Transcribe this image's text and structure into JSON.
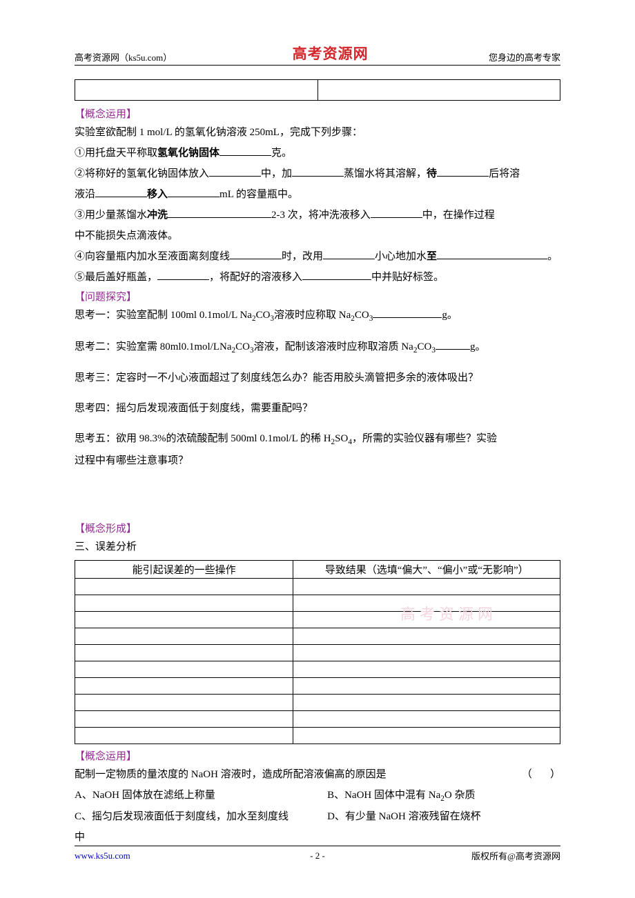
{
  "header": {
    "left": "高考资源网（ks5u.com）",
    "center": "高考资源网",
    "right": "您身边的高考专家"
  },
  "sections": {
    "apply1": "【概念运用】",
    "inquiry": "【问题探究】",
    "form": "【概念形成】",
    "apply2": "【概念运用】"
  },
  "intro": "实验室欲配制 1 mol/L 的氢氧化钠溶液 250mL，完成下列步骤：",
  "step1_a": "①用托盘天平称取",
  "step1_b": "氢氧化钠固体",
  "step1_c": "克。",
  "step2_a": "②将称好的氢氧化钠固体放入",
  "step2_b": "中，加",
  "step2_c": "蒸馏水将其溶解，",
  "step2_d": "待",
  "step2_e": "后将溶",
  "step2_f": "液沿",
  "step2_g": "移入",
  "step2_h": "mL 的容量瓶中。",
  "step3_a": "③用少量蒸馏水",
  "step3_b": "冲洗",
  "step3_c": "2-3 次，将冲洗液移入",
  "step3_d": "中，在操作过程",
  "step3_e": "中不能损失点滴液体。",
  "step4_a": "④向容量瓶内加水至液面离刻度线",
  "step4_b": "时，改用",
  "step4_c": "小心地加水",
  "step4_d": "至",
  "step4_e": "。",
  "step5_a": "⑤最后盖好瓶盖，",
  "step5_b": "，将配好的溶液移入",
  "step5_c": "中并贴好标签。",
  "think1_a": "思考一：实验室配制 100ml 0.1mol/L Na",
  "think1_b": "CO",
  "think1_c": "溶液时应称取 Na",
  "think1_d": "CO",
  "think1_e": "g。",
  "think2_a": "思考二：实验室需 80ml0.1mol/LNa",
  "think2_b": "CO",
  "think2_c": "溶液，配制该溶液时应称取溶质 Na",
  "think2_d": "CO",
  "think2_e": "g。",
  "think3": "思考三：定容时一不小心液面超过了刻度线怎么办？能否用胶头滴管把多余的液体吸出？",
  "think4": "思考四：摇匀后发现液面低于刻度线，需要重配吗？",
  "think5_a": "思考五：欲用 98.3%的浓硫酸配制 500ml 0.1mol/L 的稀 H",
  "think5_b": "SO",
  "think5_c": "，所需的实验仪器有哪些？实验",
  "think5_d": "过程中有哪些注意事项？",
  "err_title": "三、误差分析",
  "err_head_left": "能引起误差的一些操作",
  "err_head_right": "导致结果（选填“偏大”、“偏小”或“无影响”）",
  "err_rows": 10,
  "q_stem": "配制一定物质的量浓度的 NaOH 溶液时，造成所配溶液偏高的原因是",
  "q_paren": "（       ）",
  "optA": "A、NaOH 固体放在滤纸上称量",
  "optB_a": "B、NaOH 固体中混有 Na",
  "optB_b": "O 杂质",
  "optC": "C、摇匀后发现液面低于刻度线，加水至刻度线",
  "optD": "D、有少量 NaOH 溶液残留在烧杯",
  "optD2": "中",
  "watermark": "高考资源网",
  "footer": {
    "url": "www.ks5u.com",
    "page": "- 2 -",
    "right": "版权所有@高考资源网"
  },
  "colors": {
    "heading": "#922a92",
    "brand": "#d4252a",
    "link": "#0000cc",
    "watermark": "#f5d5e0",
    "text": "#000000",
    "bg": "#ffffff"
  }
}
